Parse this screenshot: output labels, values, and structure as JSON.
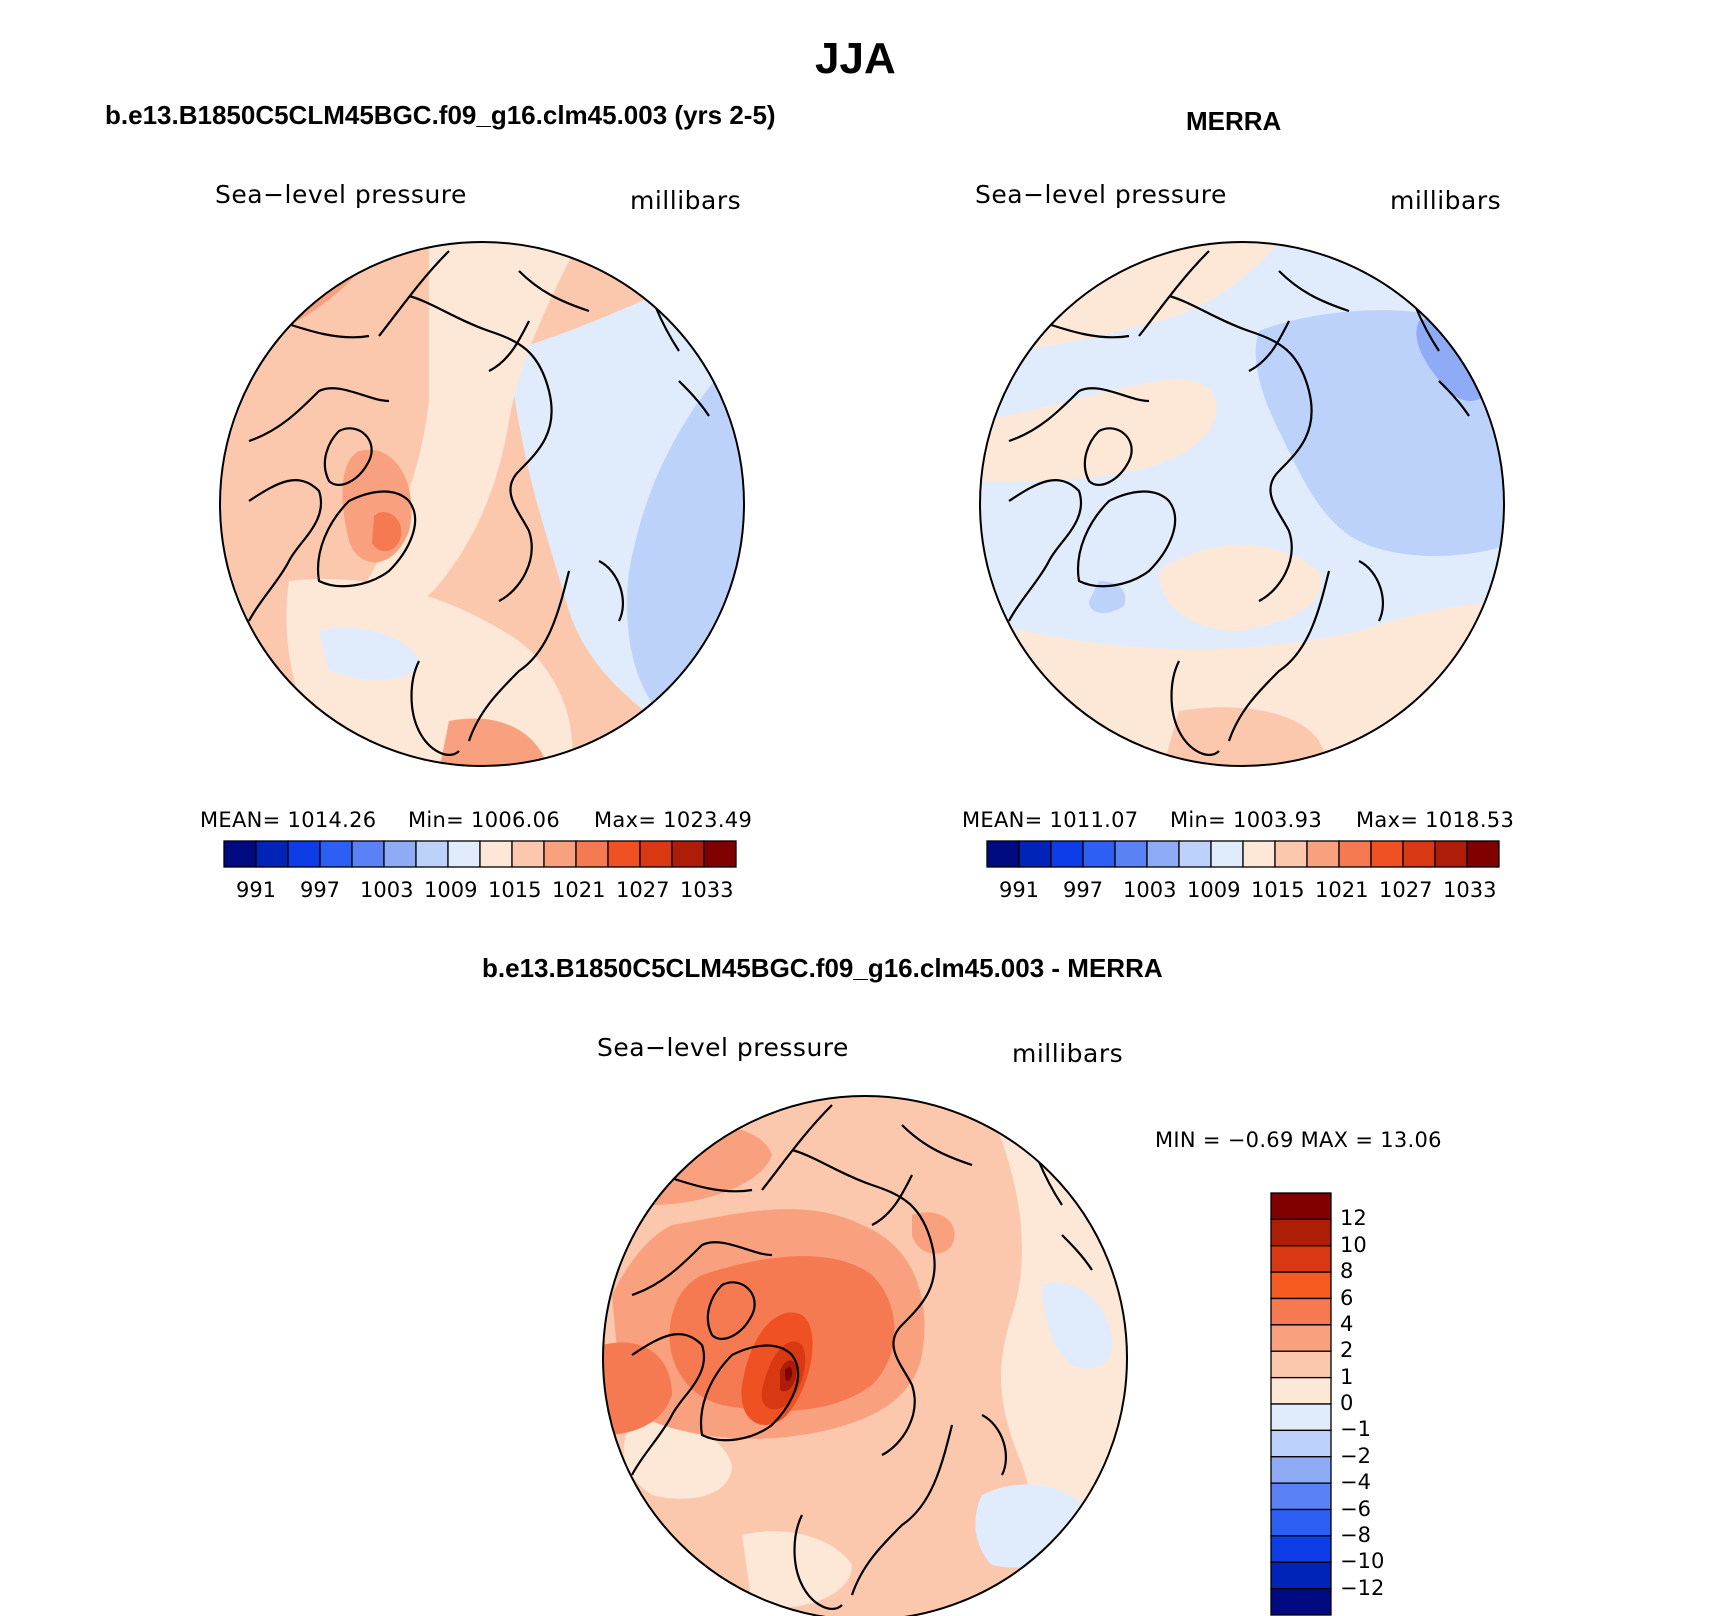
{
  "figure": {
    "title": "JJA"
  },
  "panels": {
    "model": {
      "title": "b.e13.B1850C5CLM45BGC.f09_g16.clm45.003 (yrs 2-5)",
      "variable": "Sea−level pressure",
      "units": "millibars",
      "stats": {
        "mean": "MEAN=  1014.26",
        "min": "Min=  1006.06",
        "max": "Max=  1023.49"
      }
    },
    "obs": {
      "title": "MERRA",
      "variable": "Sea−level pressure",
      "units": "millibars",
      "stats": {
        "mean": "MEAN=  1011.07",
        "min": "Min=  1003.93",
        "max": "Max=  1018.53"
      }
    },
    "diff": {
      "title": "b.e13.B1850C5CLM45BGC.f09_g16.clm45.003 - MERRA",
      "variable": "Sea−level pressure",
      "units": "millibars",
      "stats": "MIN =   −0.69  MAX =   13.06"
    }
  },
  "colorbar_abs": {
    "colors": [
      "#000a80",
      "#0024b8",
      "#0d3de6",
      "#2d5ff5",
      "#5b82f5",
      "#8fabf5",
      "#bdd2fa",
      "#e0ecfb",
      "#fde8d8",
      "#fcc8ad",
      "#f9a07e",
      "#f57a52",
      "#ef5123",
      "#d93912",
      "#ad1d08",
      "#800000"
    ],
    "labels": [
      "991",
      "997",
      "1003",
      "1009",
      "1015",
      "1021",
      "1027",
      "1033"
    ]
  },
  "colorbar_diff": {
    "colors": [
      "#800000",
      "#ad1d08",
      "#d93912",
      "#f55a1f",
      "#f57a52",
      "#f9a07e",
      "#fcc8ad",
      "#fde8d8",
      "#e0ecfb",
      "#bdd2fa",
      "#8fabf5",
      "#5b82f5",
      "#2d5ff5",
      "#0d3de6",
      "#0024b8",
      "#000a80"
    ],
    "labels": [
      "12",
      "10",
      "8",
      "6",
      "4",
      "2",
      "1",
      "0",
      "−1",
      "−2",
      "−4",
      "−6",
      "−8",
      "−10",
      "−12"
    ]
  }
}
